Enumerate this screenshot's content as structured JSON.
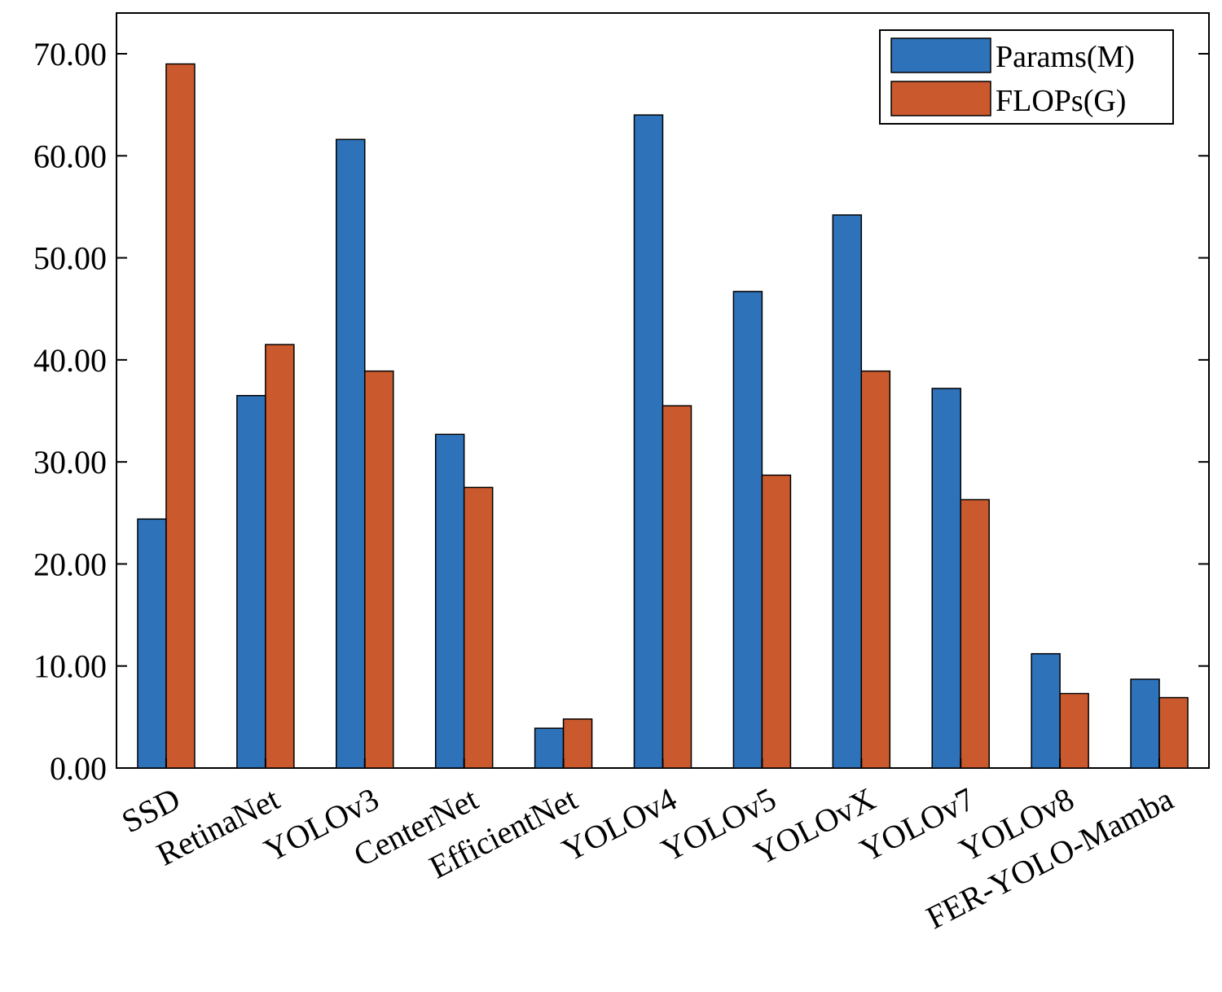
{
  "chart_data": {
    "type": "bar",
    "title": "",
    "xlabel": "",
    "ylabel": "",
    "categories": [
      "SSD",
      "RetinaNet",
      "YOLOv3",
      "CenterNet",
      "EfficientNet",
      "YOLOv4",
      "YOLOv5",
      "YOLOvX",
      "YOLOv7",
      "YOLOv8",
      "FER-YOLO-Mamba"
    ],
    "series": [
      {
        "name": "Params(M)",
        "color": "#2E72B9",
        "values": [
          24.4,
          36.5,
          61.6,
          32.7,
          3.9,
          64.0,
          46.7,
          54.2,
          37.2,
          11.2,
          8.7
        ]
      },
      {
        "name": "FLOPs(G)",
        "color": "#CA5A2E",
        "values": [
          69.0,
          41.5,
          38.9,
          27.5,
          4.8,
          35.5,
          28.7,
          38.9,
          26.3,
          7.3,
          6.9
        ]
      }
    ],
    "ylim": [
      0,
      75
    ],
    "yticks": [
      0,
      10,
      20,
      30,
      40,
      50,
      60,
      70
    ],
    "ytick_labels": [
      "0.00",
      "10.00",
      "20.00",
      "30.00",
      "40.00",
      "50.00",
      "60.00",
      "70.00"
    ],
    "legend_position": "top-right",
    "grid": false
  }
}
